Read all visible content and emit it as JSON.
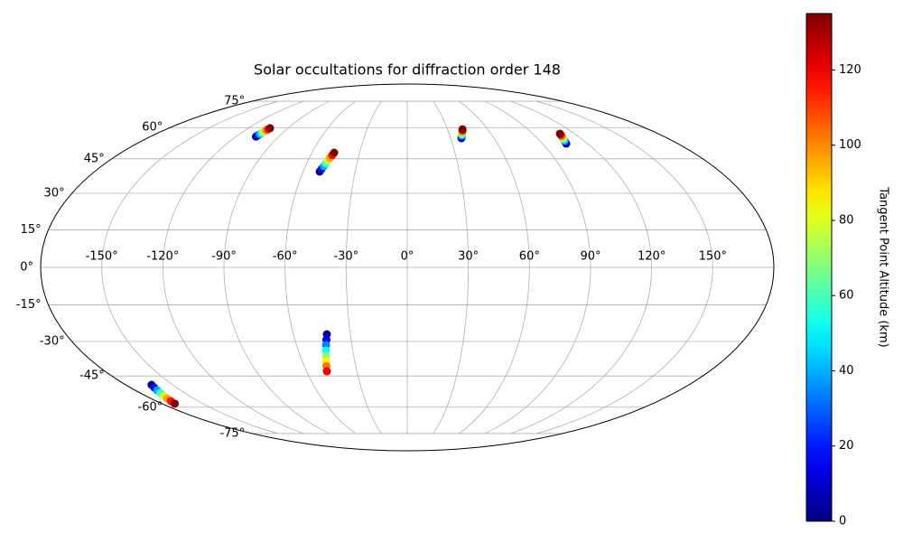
{
  "chart_data": {
    "type": "scatter",
    "projection": "mollweide",
    "title": "Solar occultations for diffraction order 148",
    "x": [
      -106,
      -105.6,
      -105.3,
      -104.9,
      -104.6,
      -104.2,
      -103.9,
      -103.5,
      -50.4,
      -49.8,
      -49.1,
      -48.5,
      -47.9,
      -47.3,
      -46.6,
      -46.0,
      37.5,
      38.0,
      38.6,
      39.1,
      39.6,
      40.1,
      40.7,
      41.2,
      105.8,
      106.3,
      106.9,
      107.4,
      107.9,
      108.4,
      109.0,
      109.5,
      -42.4,
      -43.2,
      -44.0,
      -44.8,
      -45.5,
      -46.3,
      -47.1,
      -47.9,
      -163.5,
      -164.5,
      -165.5,
      -166.5,
      -167.6,
      -168.6,
      -169.6,
      -170.6
    ],
    "y": [
      55.5,
      56.1,
      56.7,
      57.3,
      57.9,
      58.5,
      59.1,
      59.7,
      39.3,
      40.5,
      41.7,
      42.9,
      44.2,
      45.4,
      46.6,
      47.8,
      54.7,
      55.3,
      56.0,
      56.6,
      57.2,
      57.8,
      58.5,
      59.1,
      52.1,
      52.8,
      53.5,
      54.2,
      54.8,
      55.5,
      56.2,
      56.9,
      -27.0,
      -29.3,
      -31.5,
      -33.8,
      -36.1,
      -38.4,
      -40.6,
      -42.9,
      -49.1,
      -50.4,
      -51.7,
      -53.0,
      -54.3,
      -55.6,
      -56.9,
      -58.2
    ],
    "c": [
      0,
      19,
      39,
      58,
      77,
      96,
      116,
      135,
      0,
      19,
      39,
      58,
      77,
      96,
      116,
      135,
      0,
      19,
      39,
      58,
      77,
      96,
      116,
      135,
      0,
      19,
      39,
      58,
      77,
      96,
      116,
      135,
      0,
      17,
      34,
      51,
      69,
      86,
      103,
      120,
      0,
      19,
      39,
      58,
      77,
      96,
      116,
      135
    ],
    "colormap": "jet",
    "xticks": [
      {
        "value": -150,
        "label": "-150°"
      },
      {
        "value": -120,
        "label": "-120°"
      },
      {
        "value": -90,
        "label": "-90°"
      },
      {
        "value": -60,
        "label": "-60°"
      },
      {
        "value": -30,
        "label": "-30°"
      },
      {
        "value": 0,
        "label": "0°"
      },
      {
        "value": 30,
        "label": "30°"
      },
      {
        "value": 60,
        "label": "60°"
      },
      {
        "value": 90,
        "label": "90°"
      },
      {
        "value": 120,
        "label": "120°"
      },
      {
        "value": 150,
        "label": "150°"
      }
    ],
    "yticks": [
      {
        "value": -75,
        "label": "-75°"
      },
      {
        "value": -60,
        "label": "-60°"
      },
      {
        "value": -45,
        "label": "-45°"
      },
      {
        "value": -30,
        "label": "-30°"
      },
      {
        "value": -15,
        "label": "-15°"
      },
      {
        "value": 0,
        "label": "0°"
      },
      {
        "value": 15,
        "label": "15°"
      },
      {
        "value": 30,
        "label": "30°"
      },
      {
        "value": 45,
        "label": "45°"
      },
      {
        "value": 60,
        "label": "60°"
      },
      {
        "value": 75,
        "label": "75°"
      }
    ],
    "grid": true,
    "colorbar": {
      "label": "Tangent Point Altitude (km)",
      "lim": [
        0,
        135
      ],
      "ticks": [
        0,
        20,
        40,
        60,
        80,
        100,
        120
      ]
    }
  }
}
